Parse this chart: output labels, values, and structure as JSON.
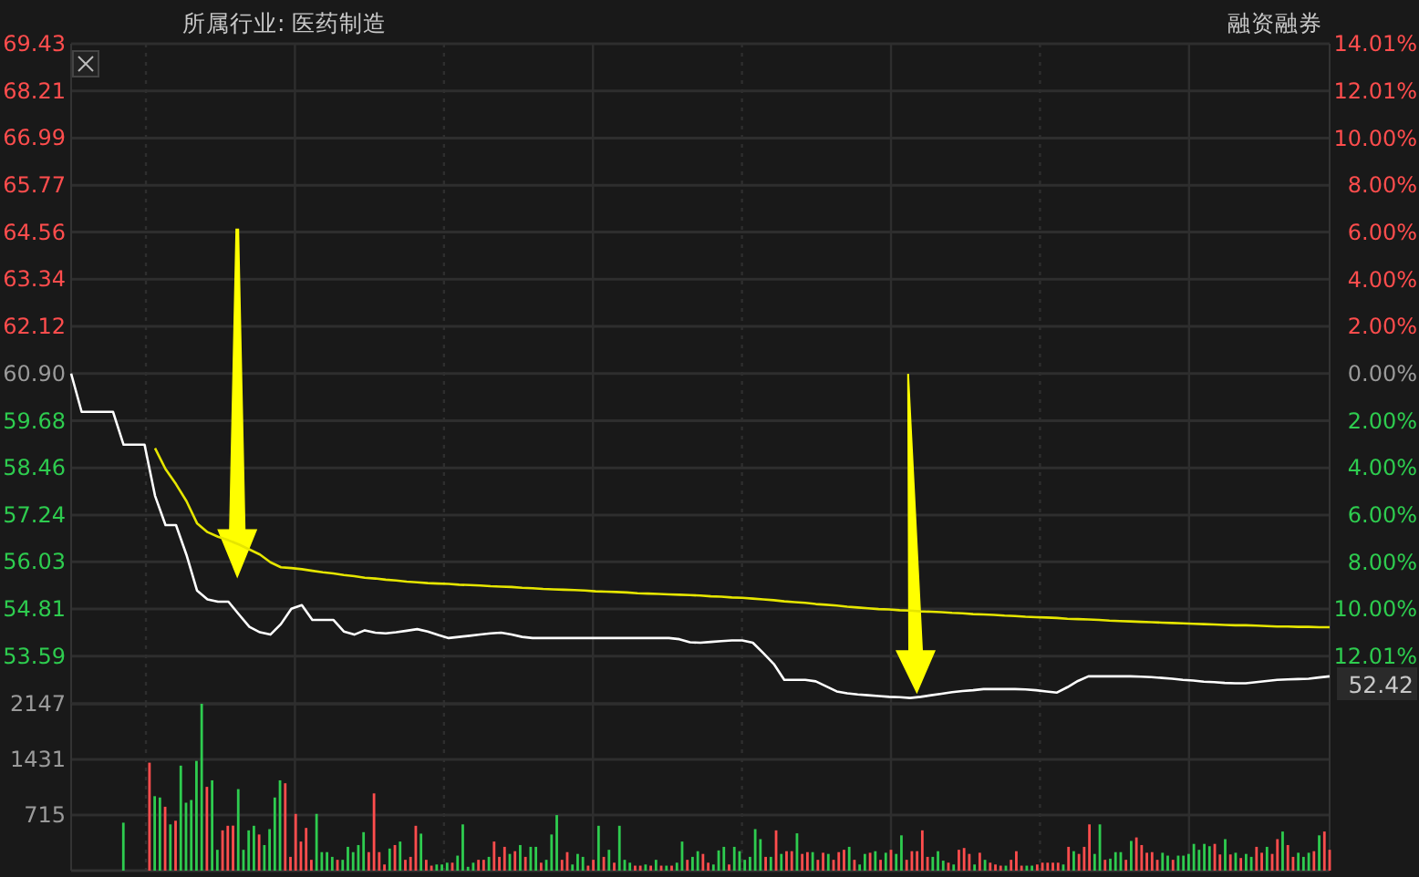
{
  "chart_data": [
    {
      "type": "line",
      "title": "所属行业: 医药制造",
      "annotations": [
        "融资融券",
        "52.42"
      ],
      "grid": true,
      "categories": [
        null,
        null,
        null,
        null,
        null,
        null,
        null,
        null,
        null,
        null,
        null,
        null,
        null,
        null,
        null,
        null,
        null,
        null,
        null,
        null,
        null,
        null,
        null,
        null,
        null,
        null,
        null,
        null,
        null,
        null,
        null,
        null,
        null,
        null,
        null,
        null,
        null,
        null,
        null,
        null,
        null,
        null,
        null,
        null,
        null,
        null,
        null,
        null,
        null,
        null,
        null,
        null,
        null,
        null,
        null,
        null,
        null,
        null,
        null,
        null,
        null,
        null,
        null,
        null,
        null,
        null,
        null,
        null,
        null,
        null,
        null,
        null,
        null,
        null,
        null,
        null,
        null,
        null,
        null,
        null,
        null,
        null,
        null,
        null,
        null,
        null,
        null,
        null,
        null,
        null,
        null,
        null,
        null,
        null,
        null,
        null,
        null,
        null,
        null,
        null,
        null,
        null,
        null,
        null,
        null,
        null,
        null,
        null,
        null,
        null,
        null,
        null,
        null,
        null,
        null,
        null,
        null,
        null,
        null,
        null,
        null
      ],
      "ylim": [
        52.36,
        69.43
      ],
      "yticks": [
        {
          "value": 69.43,
          "label": "69.43"
        },
        {
          "value": 68.21,
          "label": "68.21"
        },
        {
          "value": 66.99,
          "label": "66.99"
        },
        {
          "value": 65.77,
          "label": "65.77"
        },
        {
          "value": 64.56,
          "label": "64.56"
        },
        {
          "value": 63.34,
          "label": "63.34"
        },
        {
          "value": 62.12,
          "label": "62.12"
        },
        {
          "value": 60.9,
          "label": "60.90"
        },
        {
          "value": 59.68,
          "label": "59.68"
        },
        {
          "value": 58.46,
          "label": "58.46"
        },
        {
          "value": 57.24,
          "label": "57.24"
        },
        {
          "value": 56.03,
          "label": "56.03"
        },
        {
          "value": 54.81,
          "label": "54.81"
        },
        {
          "value": 53.59,
          "label": "53.59"
        }
      ],
      "y2lim": [
        -14.02,
        14.01
      ],
      "y2ticks": [
        {
          "value": 14.01,
          "label": "14.01%"
        },
        {
          "value": 12.01,
          "label": "12.01%"
        },
        {
          "value": 10,
          "label": "10.00%"
        },
        {
          "value": 8,
          "label": "8.00%"
        },
        {
          "value": 6,
          "label": "6.00%"
        },
        {
          "value": 4,
          "label": "4.00%"
        },
        {
          "value": 2,
          "label": "2.00%"
        },
        {
          "value": 0,
          "label": "0.00%"
        },
        {
          "value": -2,
          "label": "2.00%"
        },
        {
          "value": -4,
          "label": "4.00%"
        },
        {
          "value": -6,
          "label": "6.00%"
        },
        {
          "value": -8,
          "label": "8.00%"
        },
        {
          "value": -10,
          "label": "10.00%"
        },
        {
          "value": -12.01,
          "label": "12.01%"
        }
      ],
      "series": [
        {
          "color": "#ffffff",
          "values": [
            60.9,
            59.91,
            59.91,
            59.91,
            59.91,
            59.06,
            59.06,
            59.06,
            57.74,
            56.98,
            56.98,
            56.21,
            55.29,
            55.06,
            55.0,
            55.0,
            54.67,
            54.35,
            54.21,
            54.15,
            54.42,
            54.82,
            54.91,
            54.53,
            54.53,
            54.53,
            54.23,
            54.15,
            54.26,
            54.2,
            54.18,
            54.21,
            54.25,
            54.29,
            54.23,
            54.14,
            54.06,
            54.09,
            54.12,
            54.15,
            54.18,
            54.2,
            54.15,
            54.09,
            54.06,
            54.06,
            54.06,
            54.06,
            54.06,
            54.06,
            54.06,
            54.06,
            54.06,
            54.06,
            54.06,
            54.06,
            54.06,
            54.06,
            54.03,
            53.95,
            53.94,
            53.96,
            53.98,
            54.0,
            54.0,
            53.94,
            53.67,
            53.39,
            52.98,
            52.98,
            52.98,
            52.94,
            52.81,
            52.68,
            52.63,
            52.6,
            52.58,
            52.56,
            52.54,
            52.53,
            52.51,
            52.54,
            52.58,
            52.62,
            52.66,
            52.69,
            52.71,
            52.74,
            52.74,
            52.74,
            52.74,
            52.73,
            52.71,
            52.68,
            52.65,
            52.79,
            52.95,
            53.07,
            53.07,
            53.07,
            53.07,
            53.07,
            53.06,
            53.05,
            53.03,
            53.01,
            52.98,
            52.96,
            52.93,
            52.92,
            52.9,
            52.89,
            52.89,
            52.92,
            52.95,
            52.98,
            52.99,
            53.0,
            53.01,
            53.04,
            53.07
          ]
        },
        {
          "color": "#e6e600",
          "values": [
            null,
            null,
            null,
            null,
            null,
            null,
            null,
            null,
            58.97,
            58.43,
            58.04,
            57.6,
            57.03,
            56.8,
            56.68,
            56.59,
            56.48,
            56.35,
            56.22,
            56.02,
            55.89,
            55.87,
            55.84,
            55.8,
            55.76,
            55.73,
            55.69,
            55.66,
            55.62,
            55.6,
            55.57,
            55.55,
            55.52,
            55.5,
            55.48,
            55.47,
            55.46,
            55.44,
            55.43,
            55.42,
            55.4,
            55.39,
            55.38,
            55.36,
            55.35,
            55.33,
            55.32,
            55.31,
            55.3,
            55.29,
            55.27,
            55.26,
            55.25,
            55.24,
            55.22,
            55.21,
            55.2,
            55.19,
            55.18,
            55.17,
            55.16,
            55.14,
            55.13,
            55.11,
            55.1,
            55.08,
            55.06,
            55.04,
            55.01,
            54.99,
            54.97,
            54.94,
            54.92,
            54.9,
            54.87,
            54.85,
            54.83,
            54.81,
            54.8,
            54.78,
            54.77,
            54.75,
            54.74,
            54.73,
            54.71,
            54.7,
            54.68,
            54.67,
            54.66,
            54.64,
            54.63,
            54.61,
            54.6,
            54.59,
            54.58,
            54.56,
            54.55,
            54.54,
            54.53,
            54.51,
            54.5,
            54.49,
            54.48,
            54.47,
            54.46,
            54.45,
            54.44,
            54.43,
            54.42,
            54.41,
            54.4,
            54.39,
            54.39,
            54.38,
            54.37,
            54.36,
            54.36,
            54.35,
            54.35,
            54.34,
            54.34
          ]
        }
      ]
    },
    {
      "type": "bar",
      "grid": true,
      "categories": [
        null,
        null,
        null,
        null,
        null,
        null,
        null,
        null,
        null,
        null,
        null,
        null,
        null,
        null,
        null,
        null,
        null,
        null,
        null,
        null,
        null,
        null,
        null,
        null,
        null,
        null,
        null,
        null,
        null,
        null,
        null,
        null,
        null,
        null,
        null,
        null,
        null,
        null,
        null,
        null,
        null,
        null,
        null,
        null,
        null,
        null,
        null,
        null,
        null,
        null,
        null,
        null,
        null,
        null,
        null,
        null,
        null,
        null,
        null,
        null,
        null,
        null,
        null,
        null,
        null,
        null,
        null,
        null,
        null,
        null,
        null,
        null,
        null,
        null,
        null,
        null,
        null,
        null,
        null,
        null,
        null,
        null,
        null,
        null,
        null,
        null,
        null,
        null,
        null,
        null,
        null,
        null,
        null,
        null,
        null,
        null,
        null,
        null,
        null,
        null,
        null,
        null,
        null,
        null,
        null,
        null,
        null,
        null,
        null,
        null,
        null,
        null,
        null,
        null,
        null,
        null,
        null,
        null,
        null,
        null,
        null,
        null,
        null,
        null,
        null,
        null,
        null,
        null,
        null,
        null,
        null,
        null,
        null,
        null,
        null,
        null,
        null,
        null,
        null,
        null,
        null,
        null,
        null,
        null,
        null,
        null,
        null,
        null,
        null,
        null,
        null,
        null,
        null,
        null,
        null,
        null,
        null,
        null,
        null,
        null,
        null,
        null,
        null,
        null,
        null,
        null,
        null,
        null,
        null,
        null,
        null,
        null,
        null,
        null,
        null,
        null,
        null,
        null,
        null,
        null,
        null,
        null,
        null,
        null,
        null,
        null,
        null,
        null,
        null,
        null,
        null,
        null,
        null,
        null,
        null,
        null,
        null,
        null,
        null,
        null,
        null,
        null,
        null,
        null,
        null,
        null,
        null,
        null,
        null,
        null,
        null,
        null,
        null,
        null,
        null,
        null,
        null,
        null,
        null,
        null,
        null,
        null,
        null,
        null,
        null,
        null,
        null,
        null,
        null,
        null,
        null,
        null,
        null,
        null,
        null,
        null,
        null,
        null,
        null,
        null,
        null,
        null
      ],
      "ylim": [
        0,
        2147
      ],
      "yticks": [
        715,
        1431,
        2147
      ],
      "values": [
        null,
        null,
        null,
        null,
        null,
        null,
        null,
        null,
        null,
        null,
        617,
        null,
        null,
        null,
        null,
        1389,
        958,
        941,
        822,
        595,
        642,
        1351,
        874,
        909,
        1412,
        2147,
        1078,
        1162,
        268,
        518,
        577,
        579,
        1049,
        268,
        518,
        577,
        465,
        329,
        534,
        941,
        1162,
        1124,
        177,
        730,
        374,
        549,
        139,
        730,
        238,
        238,
        177,
        139,
        139,
        306,
        238,
        329,
        495,
        238,
        994,
        238,
        79,
        284,
        329,
        374,
        139,
        177,
        577,
        476,
        139,
        64,
        79,
        79,
        102,
        102,
        193,
        595,
        49,
        102,
        139,
        139,
        177,
        374,
        177,
        306,
        215,
        250,
        329,
        177,
        306,
        306,
        102,
        139,
        465,
        715,
        139,
        238,
        79,
        215,
        177,
        64,
        139,
        577,
        177,
        268,
        102,
        577,
        139,
        102,
        64,
        64,
        79,
        64,
        139,
        64,
        64,
        64,
        102,
        374,
        139,
        177,
        250,
        215,
        102,
        79,
        260,
        306,
        79,
        306,
        250,
        139,
        177,
        534,
        405,
        177,
        177,
        518,
        215,
        250,
        250,
        480,
        215,
        238,
        238,
        139,
        230,
        215,
        139,
        238,
        268,
        306,
        139,
        79,
        215,
        230,
        250,
        139,
        230,
        268,
        215,
        454,
        139,
        250,
        250,
        518,
        177,
        177,
        250,
        128,
        102,
        79,
        268,
        291,
        215,
        79,
        230,
        139,
        102,
        79,
        64,
        64,
        139,
        250,
        64,
        64,
        64,
        79,
        102,
        102,
        102,
        102,
        79,
        306,
        250,
        215,
        306,
        595,
        215,
        595,
        139,
        154,
        238,
        238,
        139,
        382,
        427,
        329,
        230,
        238,
        139,
        230,
        193,
        139,
        193,
        193,
        215,
        344,
        268,
        344,
        314,
        344,
        208,
        405,
        208,
        230,
        162,
        215,
        177,
        306,
        230,
        306,
        215,
        405,
        503,
        329,
        177,
        230,
        177,
        230,
        250,
        454,
        503,
        268
      ],
      "colors": [
        null,
        null,
        null,
        null,
        null,
        null,
        null,
        null,
        null,
        null,
        "#2ecc4f",
        null,
        null,
        null,
        null,
        "#ff4d4d",
        "#2ecc4f",
        "#2ecc4f",
        "#ff4d4d",
        "#2ecc4f",
        "#ff4d4d",
        "#2ecc4f",
        "#2ecc4f",
        "#2ecc4f",
        "#2ecc4f",
        "#2ecc4f",
        "#ff4d4d",
        "#2ecc4f",
        "#2ecc4f",
        "#ff4d4d",
        "#ff4d4d",
        "#ff4d4d",
        "#2ecc4f",
        "#2ecc4f",
        "#2ecc4f",
        "#2ecc4f",
        "#ff4d4d",
        "#2ecc4f",
        "#2ecc4f",
        "#2ecc4f",
        "#2ecc4f",
        "#ff4d4d",
        "#ff4d4d",
        "#ff4d4d",
        "#ff4d4d",
        "#ff4d4d",
        "#ff4d4d",
        "#2ecc4f",
        "#2ecc4f",
        "#2ecc4f",
        "#2ecc4f",
        "#ff4d4d",
        "#2ecc4f",
        "#2ecc4f",
        "#2ecc4f",
        "#2ecc4f",
        "#2ecc4f",
        "#ff4d4d",
        "#ff4d4d",
        "#ff4d4d",
        "#ff4d4d",
        "#2ecc4f",
        "#ff4d4d",
        "#2ecc4f",
        "#ff4d4d",
        "#ff4d4d",
        "#ff4d4d",
        "#2ecc4f",
        "#ff4d4d",
        "#ff4d4d",
        "#2ecc4f",
        "#2ecc4f",
        "#2ecc4f",
        "#ff4d4d",
        "#2ecc4f",
        "#2ecc4f",
        "#2ecc4f",
        "#2ecc4f",
        "#ff4d4d",
        "#ff4d4d",
        "#2ecc4f",
        "#ff4d4d",
        "#ff4d4d",
        "#ff4d4d",
        "#2ecc4f",
        "#ff4d4d",
        "#2ecc4f",
        "#ff4d4d",
        "#2ecc4f",
        "#2ecc4f",
        "#ff4d4d",
        "#2ecc4f",
        "#2ecc4f",
        "#2ecc4f",
        "#ff4d4d",
        "#ff4d4d",
        "#2ecc4f",
        "#2ecc4f",
        "#2ecc4f",
        "#ff4d4d",
        "#ff4d4d",
        "#2ecc4f",
        "#ff4d4d",
        "#2ecc4f",
        "#ff4d4d",
        "#2ecc4f",
        "#2ecc4f",
        "#2ecc4f",
        "#ff4d4d",
        "#ff4d4d",
        "#2ecc4f",
        "#ff4d4d",
        "#2ecc4f",
        "#ff4d4d",
        "#2ecc4f",
        "#ff4d4d",
        "#2ecc4f",
        "#2ecc4f",
        "#ff4d4d",
        "#2ecc4f",
        "#2ecc4f",
        "#ff4d4d",
        "#ff4d4d",
        "#2ecc4f",
        "#2ecc4f",
        "#2ecc4f",
        "#ff4d4d",
        "#2ecc4f",
        "#2ecc4f",
        "#2ecc4f",
        "#2ecc4f",
        "#2ecc4f",
        "#2ecc4f",
        "#ff4d4d",
        "#2ecc4f",
        "#ff4d4d",
        "#2ecc4f",
        "#ff4d4d",
        "#ff4d4d",
        "#2ecc4f",
        "#ff4d4d",
        "#ff4d4d",
        "#2ecc4f",
        "#ff4d4d",
        "#ff4d4d",
        "#2ecc4f",
        "#ff4d4d",
        "#ff4d4d",
        "#ff4d4d",
        "#2ecc4f",
        "#ff4d4d",
        "#2ecc4f",
        "#2ecc4f",
        "#ff4d4d",
        "#2ecc4f",
        "#ff4d4d",
        "#2ecc4f",
        "#ff4d4d",
        "#2ecc4f",
        "#2ecc4f",
        "#ff4d4d",
        "#ff4d4d",
        "#ff4d4d",
        "#ff4d4d",
        "#ff4d4d",
        "#2ecc4f",
        "#2ecc4f",
        "#2ecc4f",
        "#ff4d4d",
        "#2ecc4f",
        "#ff4d4d",
        "#ff4d4d",
        "#ff4d4d",
        "#2ecc4f",
        "#ff4d4d",
        "#2ecc4f",
        "#ff4d4d",
        "#ff4d4d",
        "#ff4d4d",
        "#2ecc4f",
        "#ff4d4d",
        "#ff4d4d",
        "#ff4d4d",
        "#2ecc4f",
        "#2ecc4f",
        "#ff4d4d",
        "#ff4d4d",
        "#ff4d4d",
        "#ff4d4d",
        "#ff4d4d",
        "#2ecc4f",
        "#ff4d4d",
        "#2ecc4f",
        "#ff4d4d",
        "#ff4d4d",
        "#ff4d4d",
        "#2ecc4f",
        "#2ecc4f",
        "#ff4d4d",
        "#2ecc4f",
        "#2ecc4f",
        "#2ecc4f",
        "#ff4d4d",
        "#2ecc4f",
        "#ff4d4d",
        "#ff4d4d",
        "#ff4d4d",
        "#ff4d4d",
        "#ff4d4d",
        "#2ecc4f",
        "#2ecc4f",
        "#ff4d4d",
        "#2ecc4f",
        "#2ecc4f",
        "#2ecc4f",
        "#2ecc4f",
        "#2ecc4f",
        "#2ecc4f",
        "#2ecc4f",
        "#ff4d4d",
        "#ff4d4d",
        "#2ecc4f",
        "#ff4d4d",
        "#2ecc4f",
        "#ff4d4d",
        "#2ecc4f",
        "#2ecc4f",
        "#ff4d4d",
        "#ff4d4d",
        "#2ecc4f",
        "#ff4d4d",
        "#ff4d4d",
        "#2ecc4f",
        "#ff4d4d",
        "#ff4d4d",
        "#2ecc4f",
        "#2ecc4f",
        "#2ecc4f",
        "#ff4d4d",
        "#2ecc4f",
        "#ff4d4d",
        "#ff4d4d"
      ]
    }
  ]
}
